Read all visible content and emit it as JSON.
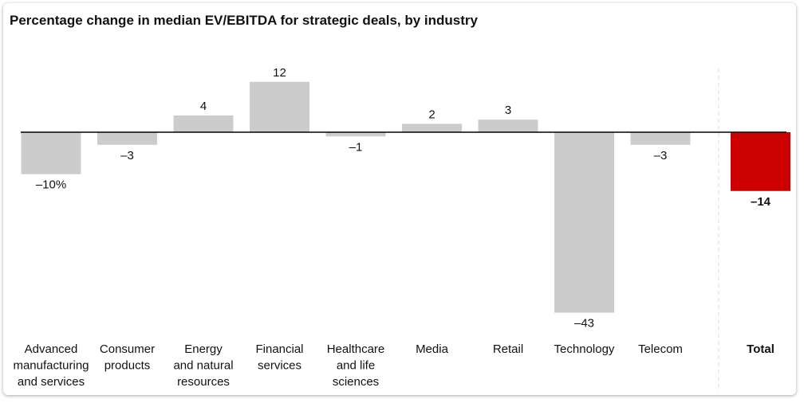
{
  "chart_data": {
    "type": "bar",
    "title": "Percentage change in median EV/EBITDA for strategic deals, by industry",
    "xlabel": "",
    "ylabel": "",
    "unit": "%",
    "categories": [
      [
        "Advanced",
        "manufacturing",
        "and services"
      ],
      [
        "Consumer",
        "products"
      ],
      [
        "Energy",
        "and natural",
        "resources"
      ],
      [
        "Financial",
        "services"
      ],
      [
        "Healthcare",
        "and life",
        "sciences"
      ],
      [
        "Media"
      ],
      [
        "Retail"
      ],
      [
        "Technology"
      ],
      [
        "Telecom"
      ],
      [
        "Total"
      ]
    ],
    "values": [
      -10,
      -3,
      4,
      12,
      -1,
      2,
      3,
      -43,
      -3,
      -14
    ],
    "value_labels": [
      "–10%",
      "–3",
      "4",
      "12",
      "–1",
      "2",
      "3",
      "–43",
      "–3",
      "–14"
    ],
    "highlight_index": 9,
    "colors": {
      "bar": "#cccccc",
      "highlight": "#cc0000",
      "axis": "#000000",
      "separator": "#dddddd"
    },
    "grid": false,
    "legend": "none"
  }
}
